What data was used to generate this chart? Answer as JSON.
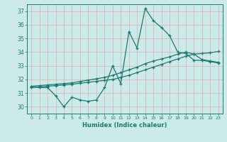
{
  "xlabel": "Humidex (Indice chaleur)",
  "background_color": "#cceaea",
  "grid_color": "#d8b8b8",
  "line_color": "#1a7a6e",
  "xlim": [
    -0.5,
    23.5
  ],
  "ylim": [
    29.5,
    37.5
  ],
  "yticks": [
    30,
    31,
    32,
    33,
    34,
    35,
    36,
    37
  ],
  "xticks": [
    0,
    1,
    2,
    3,
    4,
    5,
    6,
    7,
    8,
    9,
    10,
    11,
    12,
    13,
    14,
    15,
    16,
    17,
    18,
    19,
    20,
    21,
    22,
    23
  ],
  "x": [
    0,
    1,
    2,
    3,
    4,
    5,
    6,
    7,
    8,
    9,
    10,
    11,
    12,
    13,
    14,
    15,
    16,
    17,
    18,
    19,
    20,
    21,
    22,
    23
  ],
  "y_main": [
    31.5,
    31.4,
    31.4,
    30.8,
    30.0,
    30.7,
    30.5,
    30.4,
    30.5,
    31.4,
    33.0,
    31.7,
    35.5,
    34.3,
    37.2,
    36.3,
    35.8,
    35.2,
    34.0,
    33.9,
    33.4,
    33.4,
    33.3,
    33.2
  ],
  "y_line_upper": [
    31.5,
    31.55,
    31.6,
    31.65,
    31.7,
    31.75,
    31.85,
    31.95,
    32.05,
    32.15,
    32.3,
    32.5,
    32.7,
    32.9,
    33.15,
    33.35,
    33.5,
    33.65,
    33.85,
    34.0,
    33.85,
    33.45,
    33.35,
    33.25
  ],
  "y_line_lower": [
    31.4,
    31.45,
    31.5,
    31.55,
    31.6,
    31.65,
    31.72,
    31.79,
    31.86,
    31.93,
    32.0,
    32.15,
    32.3,
    32.5,
    32.7,
    32.9,
    33.1,
    33.3,
    33.5,
    33.7,
    33.85,
    33.9,
    33.95,
    34.05
  ]
}
